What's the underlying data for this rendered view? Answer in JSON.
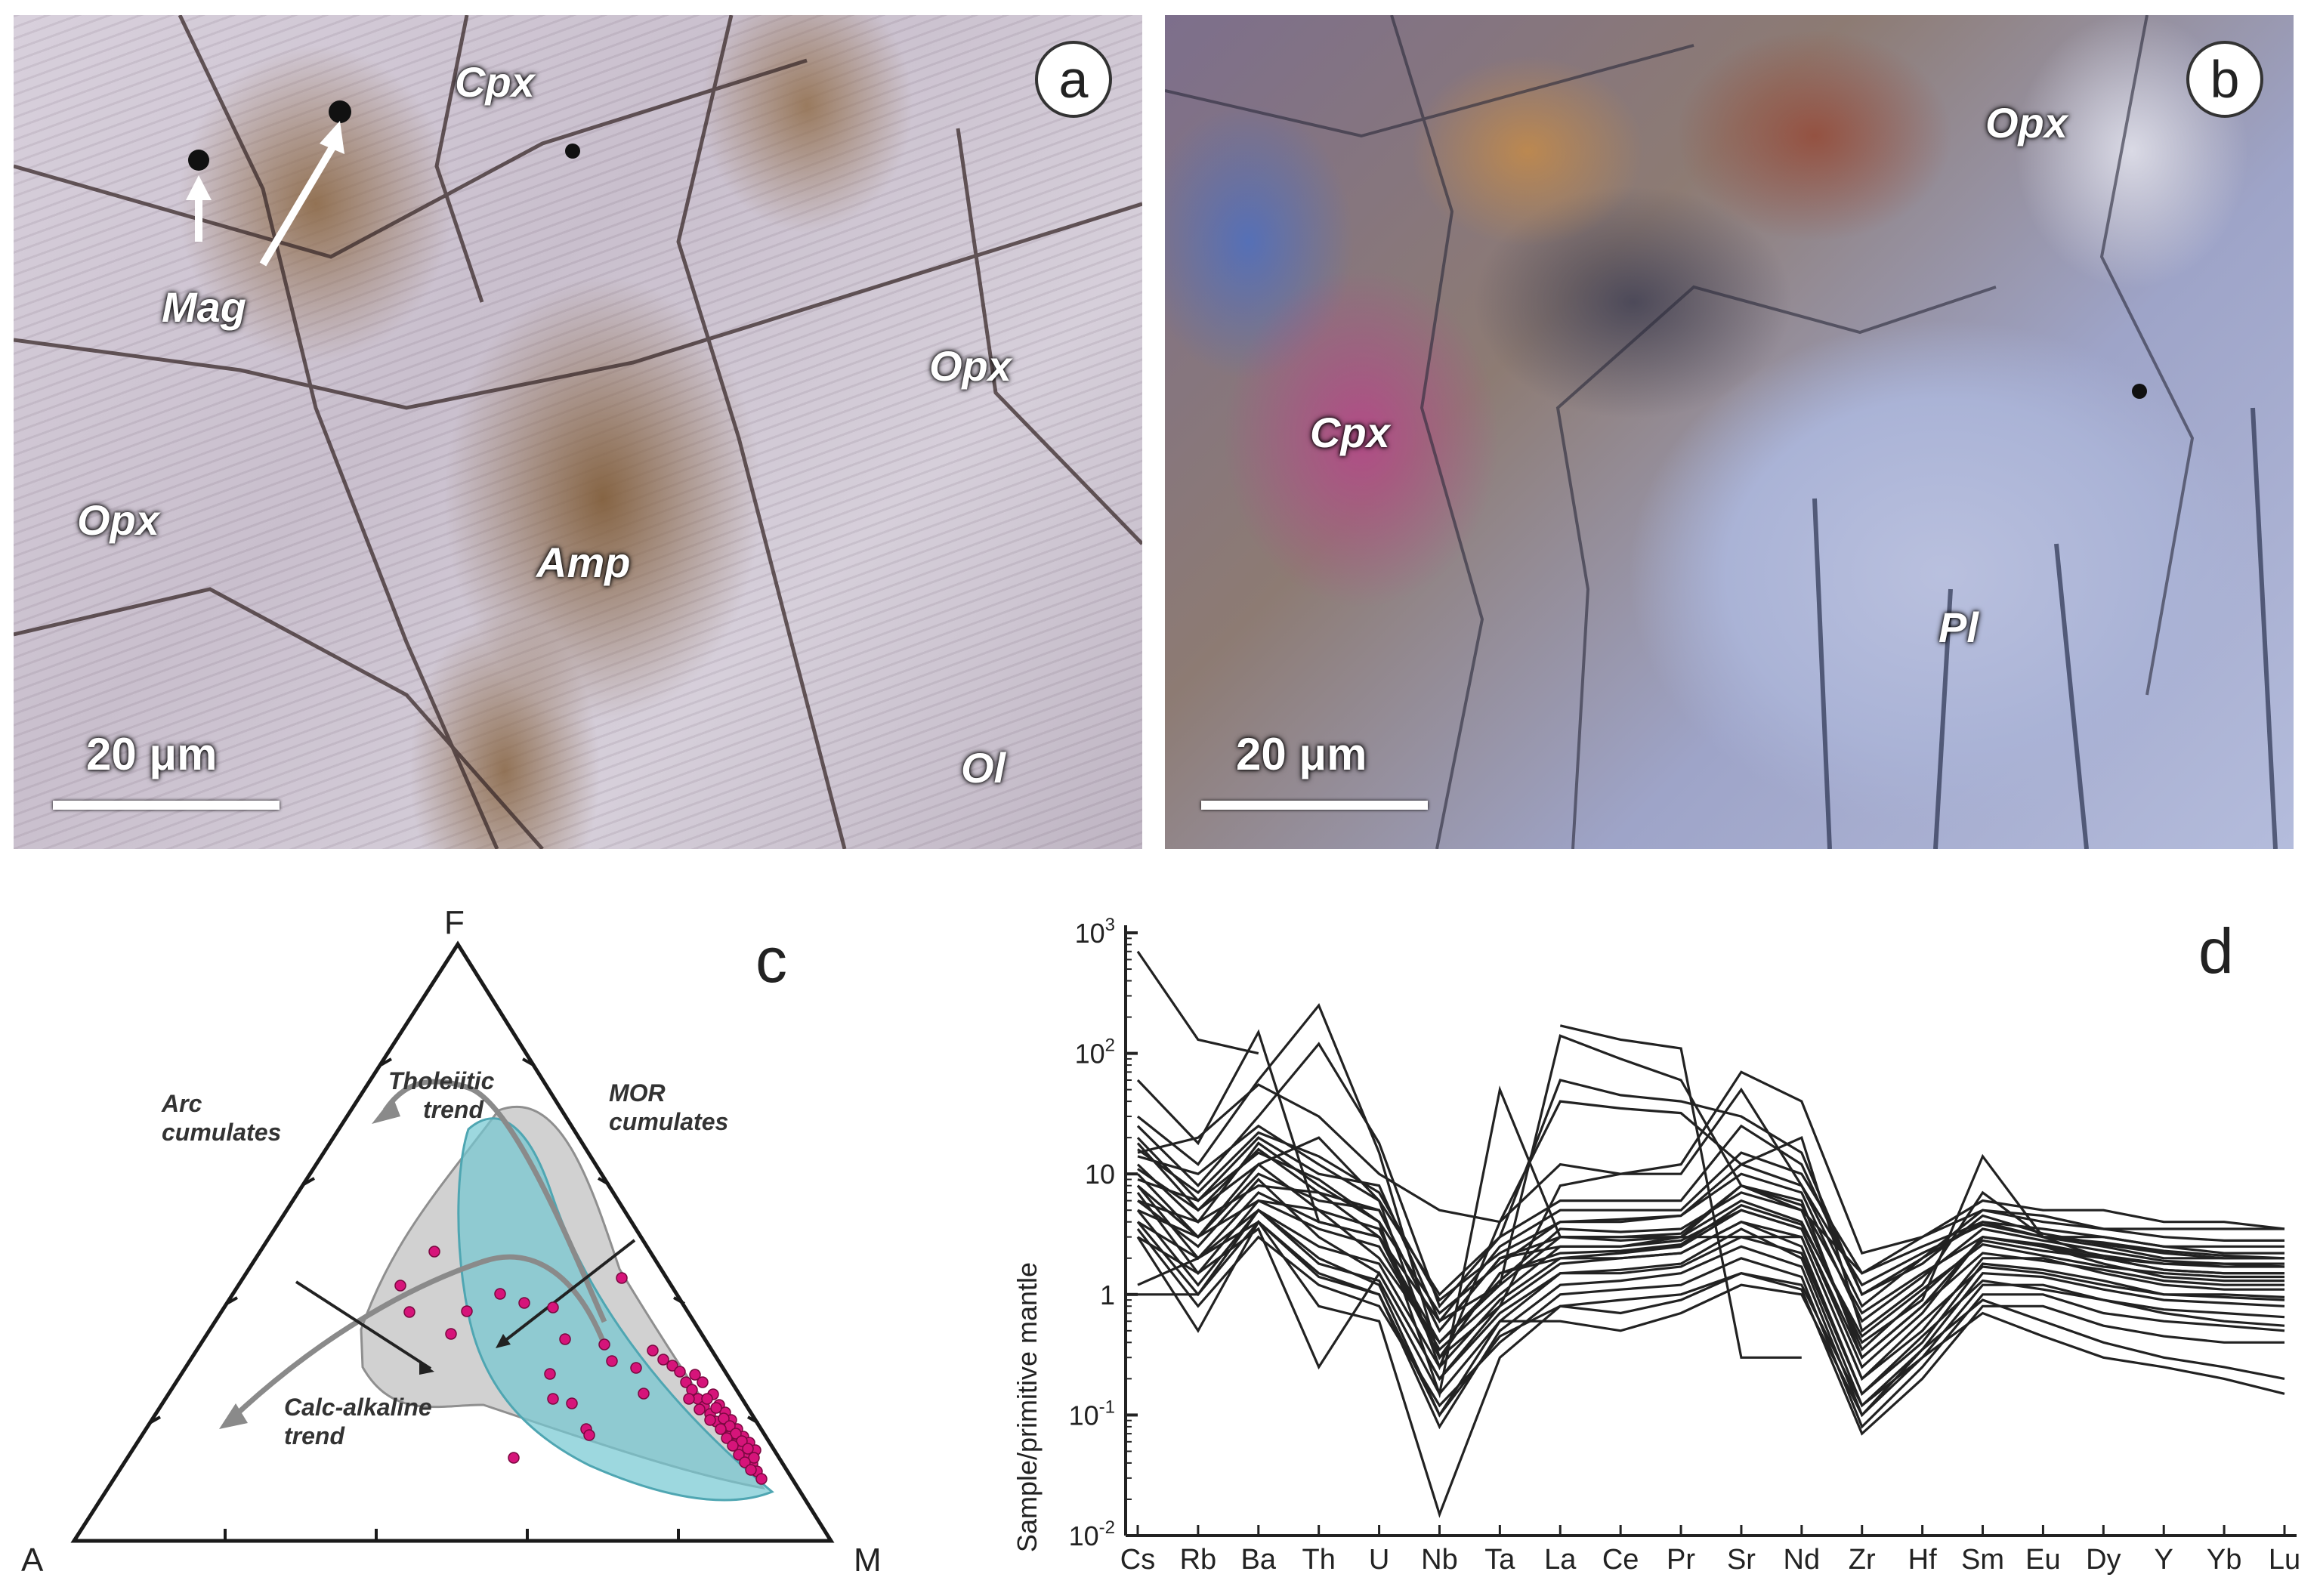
{
  "panel_a": {
    "badge": "a",
    "labels": {
      "cpx": "Cpx",
      "mag": "Mag",
      "opx_right": "Opx",
      "opx_left": "Opx",
      "amp": "Amp",
      "ol": "Ol"
    },
    "scale": "20 μm"
  },
  "panel_b": {
    "badge": "b",
    "labels": {
      "opx": "Opx",
      "cpx": "Cpx",
      "pl": "Pl"
    },
    "scale": "20 μm"
  },
  "panel_c": {
    "letter": "c",
    "vertices": {
      "top": "F",
      "left": "A",
      "right": "M"
    },
    "annotations": {
      "arc1": "Arc",
      "arc2": "cumulates",
      "thol1": "Tholeiitic",
      "thol2": "trend",
      "mor1": "MOR",
      "mor2": "cumulates",
      "calc1": "Calc-alkaline",
      "calc2": "trend"
    },
    "colors": {
      "points": "#d6147a",
      "arc_field": "#c8c8c8",
      "mor_field": "#7fcfd8",
      "trend": "#8a8a8a"
    }
  },
  "chart_data": {
    "type": "line",
    "panel_letter": "d",
    "ylabel": "Sample/primitive mantle",
    "yscale": "log",
    "ylim": [
      0.01,
      1000
    ],
    "yticks": [
      {
        "value": 1000,
        "base": "10",
        "exp": "3"
      },
      {
        "value": 100,
        "base": "10",
        "exp": "2"
      },
      {
        "value": 10,
        "base": "10",
        "exp": ""
      },
      {
        "value": 1,
        "base": "1",
        "exp": ""
      },
      {
        "value": 0.1,
        "base": "10",
        "exp": "-1"
      },
      {
        "value": 0.01,
        "base": "10",
        "exp": "-2"
      }
    ],
    "categories": [
      "Cs",
      "Rb",
      "Ba",
      "Th",
      "U",
      "Nb",
      "Ta",
      "La",
      "Ce",
      "Pr",
      "Sr",
      "Nd",
      "Zr",
      "Hf",
      "Sm",
      "Eu",
      "Dy",
      "Y",
      "Yb",
      "Lu"
    ],
    "line_color": "#222222",
    "series": [
      {
        "values": [
          700,
          130,
          100,
          null,
          null,
          null,
          null,
          null,
          null,
          null,
          null,
          null,
          null,
          null,
          null,
          null,
          null,
          null,
          null,
          null
        ]
      },
      {
        "values": [
          null,
          null,
          null,
          null,
          null,
          null,
          null,
          170,
          130,
          110,
          0.3,
          0.3,
          null,
          null,
          null,
          null,
          null,
          null,
          null,
          null
        ]
      },
      {
        "values": [
          60,
          18,
          150,
          4,
          3,
          0.6,
          1.2,
          140,
          90,
          60,
          8,
          5,
          1.5,
          3,
          5,
          4.5,
          3.5,
          3.5,
          3.5,
          3.5
        ]
      },
      {
        "values": [
          30,
          12,
          60,
          250,
          15,
          0.3,
          0.8,
          8,
          10,
          12,
          70,
          40,
          2.2,
          3,
          6,
          5,
          5,
          4,
          4,
          3.5
        ]
      },
      {
        "values": [
          25,
          8,
          30,
          120,
          18,
          0.8,
          3,
          60,
          45,
          40,
          30,
          15,
          1,
          2,
          4,
          3,
          3,
          2.5,
          2.5,
          2.5
        ]
      },
      {
        "values": [
          18,
          5,
          12,
          20,
          6,
          0.25,
          4,
          40,
          35,
          32,
          12,
          20,
          0.5,
          1.2,
          7,
          3,
          2.5,
          2,
          2,
          2
        ]
      },
      {
        "values": [
          15,
          20,
          55,
          30,
          10,
          5,
          4,
          12,
          10,
          10,
          50,
          8,
          0.8,
          2,
          5,
          4,
          3.5,
          3,
          2.8,
          2.8
        ]
      },
      {
        "values": [
          12,
          4,
          18,
          8,
          4,
          0.15,
          50,
          3,
          3,
          3,
          8,
          6,
          0.3,
          0.8,
          3,
          2.5,
          2,
          1.8,
          1.8,
          1.7
        ]
      },
      {
        "values": [
          10,
          3,
          10,
          6,
          5,
          0.5,
          2,
          2.5,
          2.5,
          3,
          6,
          4,
          0.4,
          0.9,
          14,
          3,
          2,
          1.6,
          1.5,
          1.5
        ]
      },
      {
        "values": [
          8,
          2,
          7,
          4,
          3,
          0.3,
          1.5,
          2,
          2.2,
          2.5,
          5,
          3.5,
          0.25,
          0.7,
          3,
          2.5,
          1.8,
          1.4,
          1.3,
          1.3
        ]
      },
      {
        "values": [
          7,
          1.5,
          6,
          5,
          2,
          0.4,
          1.2,
          3,
          2.8,
          3,
          3,
          3,
          0.2,
          0.5,
          2,
          2,
          1.5,
          1.2,
          1.1,
          1.1
        ]
      },
      {
        "values": [
          6,
          2.5,
          9,
          3,
          1.5,
          0.2,
          0.8,
          1.8,
          2,
          2.2,
          4,
          2.5,
          0.15,
          0.4,
          1.8,
          1.6,
          1.3,
          1,
          1,
          0.95
        ]
      },
      {
        "values": [
          5,
          1.2,
          5,
          2,
          1.2,
          0.1,
          0.6,
          1.5,
          1.6,
          1.8,
          3.5,
          2,
          0.12,
          0.35,
          1.5,
          1.4,
          1.1,
          0.9,
          0.85,
          0.8
        ]
      },
      {
        "values": [
          4,
          1,
          4,
          1.5,
          1,
          0.08,
          0.5,
          1.2,
          1.3,
          1.5,
          2.5,
          1.7,
          0.1,
          0.3,
          1.2,
          1.2,
          0.9,
          0.75,
          0.7,
          0.65
        ]
      },
      {
        "values": [
          3.5,
          0.8,
          3,
          1.2,
          0.8,
          0.12,
          0.4,
          1,
          1.1,
          1.2,
          2,
          1.4,
          0.08,
          0.25,
          1,
          1,
          0.7,
          0.6,
          0.55,
          0.5
        ]
      },
      {
        "values": [
          3,
          0.5,
          4,
          0.8,
          0.6,
          0.015,
          0.3,
          0.8,
          0.9,
          1,
          1.5,
          1.1,
          0.07,
          0.2,
          0.8,
          0.8,
          0.55,
          0.45,
          0.4,
          0.4
        ]
      },
      {
        "values": [
          20,
          6,
          20,
          10,
          8,
          0.6,
          2.5,
          5,
          5,
          5,
          15,
          10,
          1.5,
          2.5,
          4,
          3.5,
          3,
          2.5,
          2.2,
          2.2
        ]
      },
      {
        "values": [
          14,
          10,
          25,
          12,
          6,
          1,
          3,
          6,
          6,
          6,
          25,
          12,
          1,
          1.8,
          4.5,
          3.2,
          2.6,
          2.2,
          2,
          2
        ]
      },
      {
        "values": [
          9,
          6,
          15,
          9,
          4,
          0.7,
          1.8,
          4,
          4,
          4.5,
          10,
          7,
          0.6,
          1.4,
          3.5,
          2.8,
          2.3,
          1.9,
          1.8,
          1.8
        ]
      },
      {
        "values": [
          6,
          4,
          8,
          7,
          3,
          0.4,
          1.3,
          3.5,
          3.3,
          3.5,
          7,
          5,
          0.35,
          1,
          2.8,
          2.3,
          2,
          1.6,
          1.5,
          1.5
        ]
      },
      {
        "values": [
          5,
          3,
          6,
          3.5,
          2.5,
          0.35,
          1,
          2.5,
          2.5,
          2.8,
          5,
          3.5,
          0.3,
          0.8,
          2.2,
          1.9,
          1.6,
          1.3,
          1.2,
          1.2
        ]
      },
      {
        "values": [
          4,
          2,
          5,
          2.5,
          1.8,
          0.25,
          0.9,
          2,
          2,
          2.2,
          4,
          3,
          0.2,
          0.6,
          1.7,
          1.5,
          1.2,
          1,
          0.95,
          0.9
        ]
      },
      {
        "values": [
          3,
          1.5,
          3.5,
          0.25,
          1.5,
          0.2,
          0.7,
          1.5,
          1.5,
          1.7,
          3,
          2.2,
          0.15,
          0.45,
          1.3,
          1.1,
          0.9,
          0.7,
          0.6,
          0.55
        ]
      },
      {
        "values": [
          1,
          1,
          5,
          1.8,
          1.3,
          0.15,
          0.6,
          0.6,
          0.5,
          0.7,
          1.2,
          1,
          0.1,
          0.35,
          0.9,
          0.6,
          0.4,
          0.3,
          0.25,
          0.2
        ]
      },
      {
        "values": [
          1.2,
          2,
          4,
          1.4,
          1,
          0.1,
          0.45,
          0.8,
          0.7,
          0.9,
          1.5,
          1.2,
          0.12,
          0.3,
          0.7,
          0.45,
          0.3,
          0.25,
          0.2,
          0.15
        ]
      },
      {
        "values": [
          8,
          3,
          12,
          5,
          3.5,
          0.3,
          1.5,
          2.2,
          2.3,
          2.6,
          5.5,
          3.8,
          0.45,
          1.1,
          2.6,
          2.1,
          1.7,
          1.5,
          1.4,
          1.4
        ]
      },
      {
        "values": [
          11,
          5,
          16,
          7,
          5,
          0.5,
          2,
          3,
          3,
          3.2,
          8,
          5.5,
          0.7,
          1.5,
          3,
          2.6,
          2.1,
          1.8,
          1.7,
          1.7
        ]
      },
      {
        "values": [
          16,
          7,
          22,
          14,
          7,
          0.9,
          2.2,
          4,
          4.2,
          4.5,
          12,
          8,
          1.2,
          2.2,
          3.8,
          3,
          2.7,
          2.3,
          2.1,
          2
        ]
      }
    ]
  }
}
